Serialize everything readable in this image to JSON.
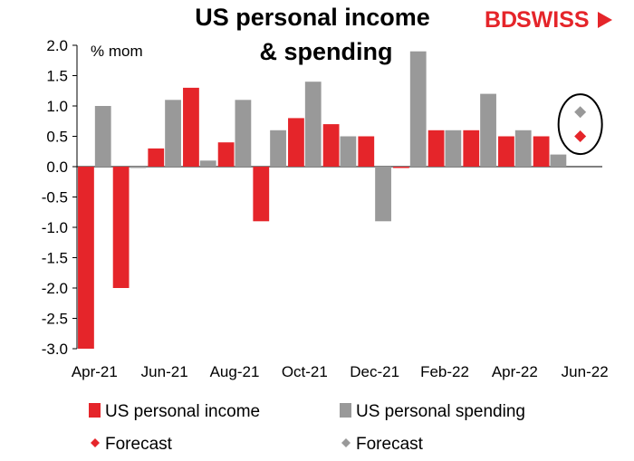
{
  "logo": {
    "part1": "BD",
    "part2": "SWISS"
  },
  "chart_data": {
    "type": "bar",
    "title_line1": "US personal income",
    "title_line2": "& spending",
    "unit_label": "% mom",
    "categories": [
      "Apr-21",
      "May-21",
      "Jun-21",
      "Jul-21",
      "Aug-21",
      "Sep-21",
      "Oct-21",
      "Nov-21",
      "Dec-21",
      "Jan-22",
      "Feb-22",
      "Mar-22",
      "Apr-22",
      "May-22",
      "Jun-22"
    ],
    "x_tick_labels": [
      "Apr-21",
      "",
      "Jun-21",
      "",
      "Aug-21",
      "",
      "Oct-21",
      "",
      "Dec-21",
      "",
      "Feb-22",
      "",
      "Apr-22",
      "",
      "Jun-22"
    ],
    "ylim": [
      -3.0,
      2.0
    ],
    "yticks": [
      2.0,
      1.5,
      1.0,
      0.5,
      0.0,
      -0.5,
      -1.0,
      -1.5,
      -2.0,
      -2.5,
      -3.0
    ],
    "ytick_labels": [
      "2.0",
      "1.5",
      "1.0",
      "0.5",
      "0.0",
      "-0.5",
      "-1.0",
      "-1.5",
      "-2.0",
      "-2.5",
      "-3.0"
    ],
    "series": [
      {
        "name": "US personal income",
        "color": "#e5252a",
        "values": [
          -3.0,
          -2.0,
          0.3,
          1.3,
          0.4,
          -0.9,
          0.8,
          0.7,
          0.5,
          0.0,
          0.6,
          0.6,
          0.5,
          0.5,
          null
        ]
      },
      {
        "name": "US personal spending",
        "color": "#999999",
        "values": [
          1.0,
          0.0,
          1.1,
          0.1,
          1.1,
          0.6,
          1.4,
          0.5,
          -0.9,
          1.9,
          0.6,
          1.2,
          0.6,
          0.2,
          null
        ]
      }
    ],
    "forecasts": [
      {
        "name": "Forecast",
        "series": "US personal income",
        "category": "Jun-22",
        "value": 0.5,
        "color": "#e5252a"
      },
      {
        "name": "Forecast",
        "series": "US personal spending",
        "category": "Jun-22",
        "value": 0.9,
        "color": "#999999"
      }
    ],
    "legend_position": "bottom",
    "grid": false
  }
}
